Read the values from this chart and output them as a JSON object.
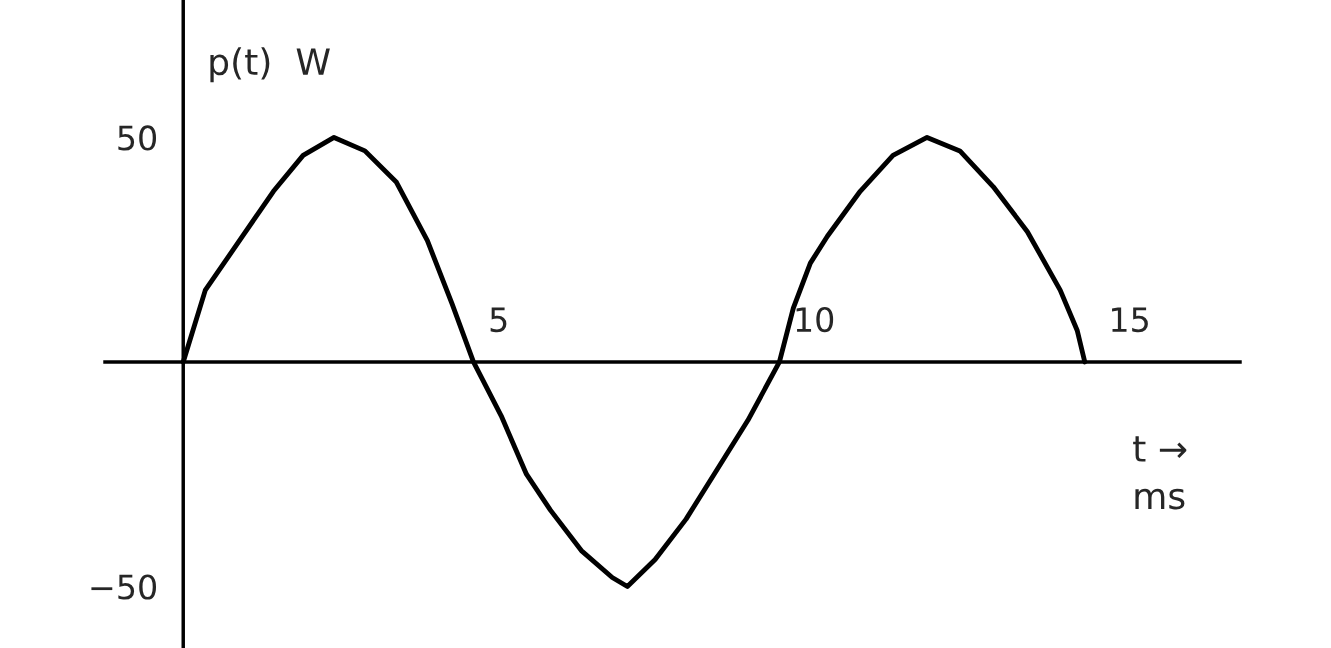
{
  "chart_data": {
    "type": "line",
    "ylabel": "p(t)  W",
    "xlabel": "t →",
    "annotations": [
      "ms"
    ],
    "x": [
      0,
      0.35,
      0.94,
      1.43,
      1.9,
      2.39,
      2.88,
      3.38,
      3.87,
      4.26,
      4.6,
      5.04,
      5.44,
      5.82,
      6.31,
      6.8,
      7.04,
      7.48,
      7.97,
      8.46,
      8.95,
      9.45,
      9.67,
      9.94,
      10.21,
      10.73,
      11.25,
      11.79,
      12.31,
      12.84,
      13.38,
      13.9,
      14.17,
      14.29
    ],
    "series": [
      {
        "color": "#000000",
        "values": [
          0,
          16,
          28,
          38,
          46,
          50,
          47,
          40,
          27,
          13,
          0,
          -12,
          -25,
          -33,
          -42,
          -48,
          -50,
          -44,
          -35,
          -24,
          -13,
          0,
          12,
          22,
          28,
          38,
          46,
          50,
          47,
          39,
          29,
          16,
          7,
          0
        ]
      }
    ],
    "xlim": [
      -1.24,
      16.75
    ],
    "ylim": [
      -63.7,
      80.6
    ],
    "xticks": [
      5,
      10,
      15
    ],
    "yticks": [
      -50,
      50
    ],
    "grid": false,
    "legend": false,
    "marker": "none",
    "line_style": "solid"
  }
}
